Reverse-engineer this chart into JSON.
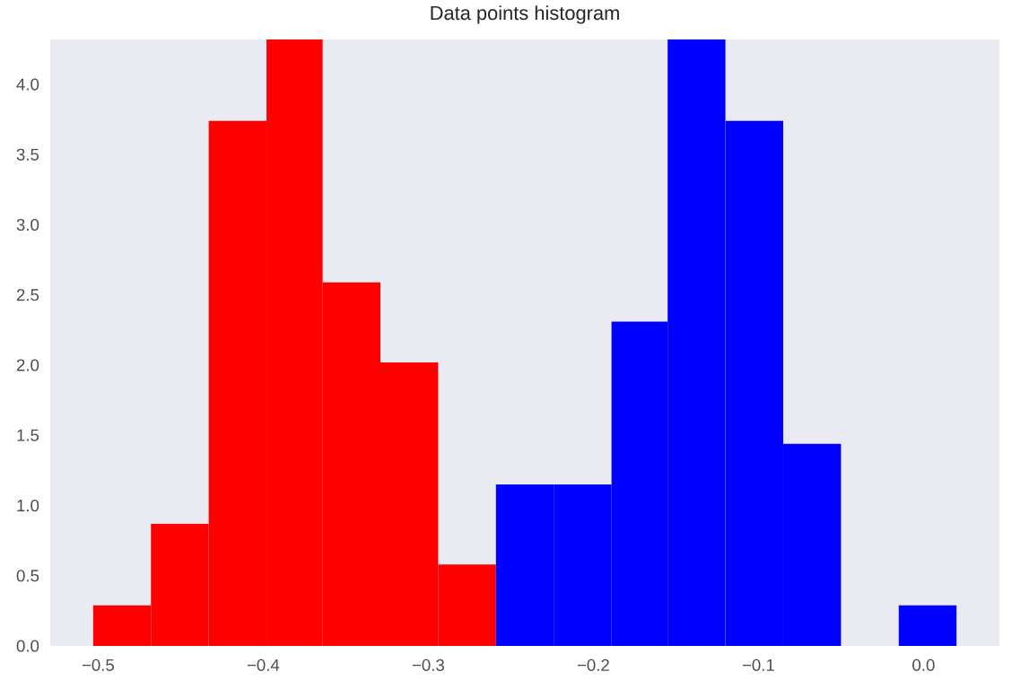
{
  "chart_data": {
    "type": "histogram",
    "title": "Data points histogram",
    "bins": [
      -0.503,
      -0.468,
      -0.433,
      -0.398,
      -0.364,
      -0.329,
      -0.294,
      -0.259,
      -0.224,
      -0.189,
      -0.155,
      -0.12,
      -0.085,
      -0.05,
      -0.015,
      0.02
    ],
    "series": [
      {
        "color": "#ff0000",
        "values": [
          0.29,
          0.87,
          3.74,
          4.32,
          2.59,
          2.02,
          0.58,
          null,
          null,
          null,
          null,
          null,
          null,
          null,
          null
        ]
      },
      {
        "color": "#0000ff",
        "values": [
          null,
          null,
          null,
          null,
          null,
          null,
          null,
          1.15,
          1.15,
          2.31,
          4.32,
          3.74,
          1.44,
          0,
          0.29
        ]
      }
    ],
    "xlim": [
      -0.529,
      0.046
    ],
    "ylim": [
      0,
      4.32
    ],
    "xticks": [
      {
        "value": -0.5,
        "label": "−0.5"
      },
      {
        "value": -0.4,
        "label": "−0.4"
      },
      {
        "value": -0.3,
        "label": "−0.3"
      },
      {
        "value": -0.2,
        "label": "−0.2"
      },
      {
        "value": -0.1,
        "label": "−0.1"
      },
      {
        "value": 0.0,
        "label": "0.0"
      }
    ],
    "yticks": [
      {
        "value": 0,
        "label": "0.0"
      },
      {
        "value": 0.5,
        "label": "0.5"
      },
      {
        "value": 1.0,
        "label": "1.0"
      },
      {
        "value": 1.5,
        "label": "1.5"
      },
      {
        "value": 2.0,
        "label": "2.0"
      },
      {
        "value": 2.5,
        "label": "2.5"
      },
      {
        "value": 3.0,
        "label": "3.0"
      },
      {
        "value": 3.5,
        "label": "3.5"
      },
      {
        "value": 4.0,
        "label": "4.0"
      }
    ],
    "grid": false
  }
}
